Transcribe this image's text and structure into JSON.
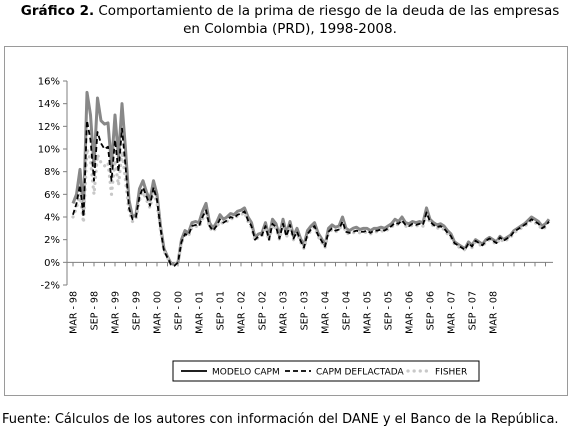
{
  "title_label": "Gráfico 2.",
  "title_line1": " Comportamiento de la prima de riesgo de la deuda de las empresas",
  "title_line2": "en Colombia (PRD), 1998-2008.",
  "source": "Fuente: Cálculos de los autores con información del DANE y el Banco de la República.",
  "chart_data": {
    "type": "line",
    "title": "Comportamiento de la prima de riesgo de la deuda de las empresas en Colombia (PRD), 1998-2008.",
    "xlabel": "",
    "ylabel": "",
    "ylim": [
      -0.02,
      0.16
    ],
    "yticks": [
      -0.02,
      0,
      0.02,
      0.04,
      0.06,
      0.08,
      0.1,
      0.12,
      0.14,
      0.16
    ],
    "ytick_labels": [
      "-2%",
      "0%",
      "2%",
      "4%",
      "6%",
      "8%",
      "10%",
      "12%",
      "14%",
      "16%"
    ],
    "grid": false,
    "legend": "bottom",
    "x_tick_labels": [
      "MAR - 98",
      "SEP - 98",
      "MAR - 99",
      "SEP - 99",
      "MAR - 00",
      "SEP - 00",
      "MAR - 01",
      "SEP - 01",
      "MAR - 02",
      "SEP - 02",
      "MAR - 03",
      "SEP - 03",
      "MAR - 04",
      "SEP - 04",
      "MAR - 05",
      "SEP - 05",
      "MAR - 06",
      "SEP - 06",
      "MAR - 07",
      "SEP - 07",
      "MAR - 08"
    ],
    "x_monthly_start": "1998-03",
    "series": [
      {
        "name": "MODELO CAPM",
        "color": "#888888",
        "style": "solid",
        "values": [
          0.052,
          0.06,
          0.082,
          0.045,
          0.15,
          0.13,
          0.085,
          0.145,
          0.125,
          0.122,
          0.123,
          0.085,
          0.13,
          0.092,
          0.14,
          0.1,
          0.055,
          0.04,
          0.042,
          0.065,
          0.072,
          0.062,
          0.055,
          0.072,
          0.06,
          0.032,
          0.012,
          0.005,
          -0.001,
          -0.002,
          0.0,
          0.02,
          0.028,
          0.026,
          0.035,
          0.036,
          0.035,
          0.045,
          0.052,
          0.035,
          0.03,
          0.035,
          0.042,
          0.038,
          0.04,
          0.043,
          0.042,
          0.045,
          0.046,
          0.048,
          0.04,
          0.035,
          0.022,
          0.025,
          0.026,
          0.035,
          0.022,
          0.038,
          0.034,
          0.023,
          0.038,
          0.025,
          0.036,
          0.023,
          0.03,
          0.021,
          0.015,
          0.028,
          0.032,
          0.035,
          0.026,
          0.021,
          0.015,
          0.03,
          0.033,
          0.031,
          0.032,
          0.04,
          0.03,
          0.028,
          0.03,
          0.031,
          0.029,
          0.03,
          0.03,
          0.028,
          0.03,
          0.03,
          0.031,
          0.03,
          0.032,
          0.034,
          0.038,
          0.036,
          0.04,
          0.035,
          0.034,
          0.036,
          0.035,
          0.036,
          0.035,
          0.048,
          0.038,
          0.035,
          0.033,
          0.034,
          0.032,
          0.028,
          0.025,
          0.018,
          0.016,
          0.014,
          0.012,
          0.018,
          0.015,
          0.02,
          0.018,
          0.016,
          0.02,
          0.022,
          0.02,
          0.018,
          0.023,
          0.02,
          0.022,
          0.024,
          0.028,
          0.03,
          0.032,
          0.034,
          0.037,
          0.04,
          0.038,
          0.036,
          0.032,
          0.034,
          0.038
        ]
      },
      {
        "name": "CAPM DEFLACTADA",
        "color": "#000000",
        "style": "dashed",
        "values": [
          0.042,
          0.052,
          0.068,
          0.04,
          0.125,
          0.108,
          0.072,
          0.115,
          0.105,
          0.1,
          0.102,
          0.072,
          0.108,
          0.08,
          0.118,
          0.085,
          0.048,
          0.038,
          0.04,
          0.058,
          0.066,
          0.058,
          0.05,
          0.066,
          0.055,
          0.03,
          0.01,
          0.004,
          -0.002,
          -0.003,
          0.0,
          0.018,
          0.025,
          0.024,
          0.032,
          0.033,
          0.032,
          0.04,
          0.046,
          0.032,
          0.028,
          0.032,
          0.038,
          0.035,
          0.037,
          0.04,
          0.039,
          0.042,
          0.043,
          0.045,
          0.037,
          0.032,
          0.02,
          0.023,
          0.024,
          0.032,
          0.02,
          0.034,
          0.031,
          0.021,
          0.034,
          0.023,
          0.033,
          0.021,
          0.027,
          0.019,
          0.013,
          0.025,
          0.029,
          0.032,
          0.024,
          0.019,
          0.014,
          0.027,
          0.03,
          0.028,
          0.029,
          0.036,
          0.027,
          0.026,
          0.027,
          0.028,
          0.027,
          0.027,
          0.028,
          0.026,
          0.028,
          0.028,
          0.029,
          0.028,
          0.03,
          0.032,
          0.035,
          0.034,
          0.037,
          0.033,
          0.032,
          0.034,
          0.033,
          0.034,
          0.033,
          0.044,
          0.036,
          0.033,
          0.031,
          0.032,
          0.03,
          0.026,
          0.023,
          0.017,
          0.015,
          0.013,
          0.011,
          0.017,
          0.014,
          0.019,
          0.017,
          0.015,
          0.019,
          0.021,
          0.019,
          0.017,
          0.022,
          0.019,
          0.021,
          0.023,
          0.027,
          0.029,
          0.031,
          0.033,
          0.035,
          0.038,
          0.036,
          0.034,
          0.03,
          0.032,
          0.036
        ]
      },
      {
        "name": "FISHER",
        "color": "#c8c8c8",
        "style": "dotted",
        "values": [
          0.04,
          0.048,
          0.06,
          0.035,
          0.1,
          0.09,
          0.06,
          0.095,
          0.088,
          0.085,
          0.088,
          0.06,
          0.09,
          0.068,
          0.098,
          0.072,
          0.045,
          0.036,
          0.038,
          0.055,
          0.062,
          0.055,
          0.048,
          0.062,
          0.052,
          0.028,
          0.01,
          0.004,
          -0.002,
          -0.002,
          0.0,
          0.017,
          0.024,
          0.023,
          0.031,
          0.032,
          0.031,
          0.038,
          0.044,
          0.031,
          0.027,
          0.031,
          0.036,
          0.034,
          0.036,
          0.039,
          0.038,
          0.041,
          0.042,
          0.044,
          0.036,
          0.031,
          0.019,
          0.022,
          0.023,
          0.031,
          0.019,
          0.033,
          0.03,
          0.02,
          0.033,
          0.022,
          0.032,
          0.02,
          0.026,
          0.018,
          0.012,
          0.024,
          0.028,
          0.031,
          0.023,
          0.018,
          0.013,
          0.026,
          0.029,
          0.027,
          0.028,
          0.035,
          0.026,
          0.025,
          0.026,
          0.027,
          0.026,
          0.026,
          0.027,
          0.025,
          0.027,
          0.027,
          0.028,
          0.027,
          0.029,
          0.031,
          0.034,
          0.033,
          0.036,
          0.032,
          0.031,
          0.033,
          0.032,
          0.033,
          0.032,
          0.042,
          0.035,
          0.032,
          0.03,
          0.031,
          0.029,
          0.025,
          0.022,
          0.016,
          0.014,
          0.012,
          0.011,
          0.016,
          0.013,
          0.018,
          0.016,
          0.014,
          0.018,
          0.02,
          0.018,
          0.016,
          0.021,
          0.018,
          0.02,
          0.022,
          0.026,
          0.028,
          0.03,
          0.032,
          0.034,
          0.037,
          0.035,
          0.033,
          0.029,
          0.031,
          0.034
        ]
      }
    ]
  }
}
